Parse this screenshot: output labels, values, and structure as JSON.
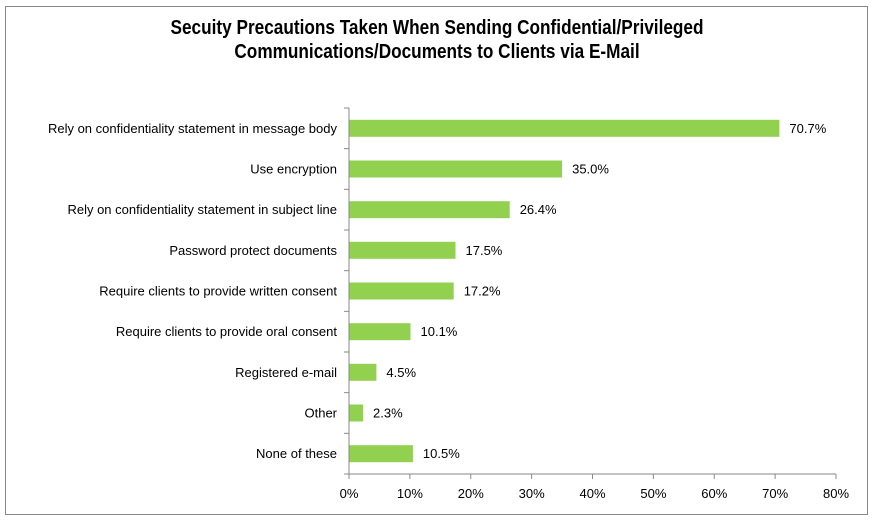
{
  "chart_data": {
    "type": "bar",
    "orientation": "horizontal",
    "title_lines": [
      "Secuity Precautions Taken When Sending Confidential/Privileged",
      "Communications/Documents to Clients via E-Mail"
    ],
    "categories": [
      "Rely on confidentiality statement in message body",
      "Use encryption",
      "Rely on confidentiality statement in subject line",
      "Password protect documents",
      "Require clients to provide written consent",
      "Require clients to provide oral consent",
      "Registered e-mail",
      "Other",
      "None of these"
    ],
    "values": [
      70.7,
      35.0,
      26.4,
      17.5,
      17.2,
      10.1,
      4.5,
      2.3,
      10.5
    ],
    "value_labels": [
      "70.7%",
      "35.0%",
      "26.4%",
      "17.5%",
      "17.2%",
      "10.1%",
      "4.5%",
      "2.3%",
      "10.5%"
    ],
    "xlim": [
      0,
      80
    ],
    "x_ticks": [
      0,
      10,
      20,
      30,
      40,
      50,
      60,
      70,
      80
    ],
    "x_tick_labels": [
      "0%",
      "10%",
      "20%",
      "30%",
      "40%",
      "50%",
      "60%",
      "70%",
      "80%"
    ],
    "bar_color": "#92d050",
    "grid": false,
    "legend": "none"
  }
}
